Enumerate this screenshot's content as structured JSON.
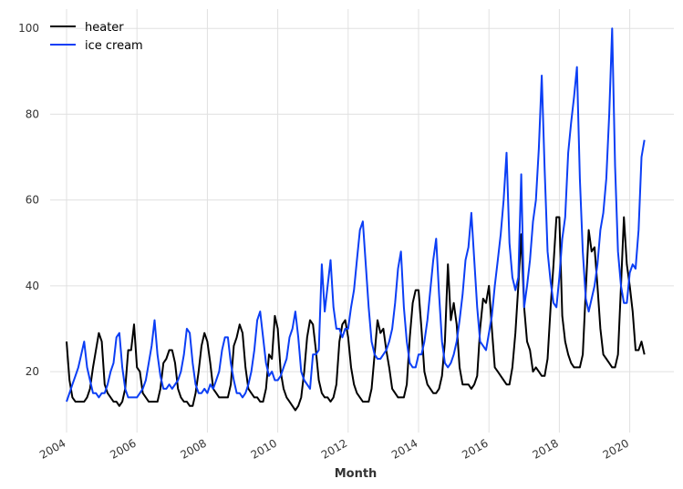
{
  "chart_data": {
    "type": "line",
    "xlabel": "Month",
    "x": [
      "2004-01",
      "2004-02",
      "2004-03",
      "2004-04",
      "2004-05",
      "2004-06",
      "2004-07",
      "2004-08",
      "2004-09",
      "2004-10",
      "2004-11",
      "2004-12",
      "2005-01",
      "2005-02",
      "2005-03",
      "2005-04",
      "2005-05",
      "2005-06",
      "2005-07",
      "2005-08",
      "2005-09",
      "2005-10",
      "2005-11",
      "2005-12",
      "2006-01",
      "2006-02",
      "2006-03",
      "2006-04",
      "2006-05",
      "2006-06",
      "2006-07",
      "2006-08",
      "2006-09",
      "2006-10",
      "2006-11",
      "2006-12",
      "2007-01",
      "2007-02",
      "2007-03",
      "2007-04",
      "2007-05",
      "2007-06",
      "2007-07",
      "2007-08",
      "2007-09",
      "2007-10",
      "2007-11",
      "2007-12",
      "2008-01",
      "2008-02",
      "2008-03",
      "2008-04",
      "2008-05",
      "2008-06",
      "2008-07",
      "2008-08",
      "2008-09",
      "2008-10",
      "2008-11",
      "2008-12",
      "2009-01",
      "2009-02",
      "2009-03",
      "2009-04",
      "2009-05",
      "2009-06",
      "2009-07",
      "2009-08",
      "2009-09",
      "2009-10",
      "2009-11",
      "2009-12",
      "2010-01",
      "2010-02",
      "2010-03",
      "2010-04",
      "2010-05",
      "2010-06",
      "2010-07",
      "2010-08",
      "2010-09",
      "2010-10",
      "2010-11",
      "2010-12",
      "2011-01",
      "2011-02",
      "2011-03",
      "2011-04",
      "2011-05",
      "2011-06",
      "2011-07",
      "2011-08",
      "2011-09",
      "2011-10",
      "2011-11",
      "2011-12",
      "2012-01",
      "2012-02",
      "2012-03",
      "2012-04",
      "2012-05",
      "2012-06",
      "2012-07",
      "2012-08",
      "2012-09",
      "2012-10",
      "2012-11",
      "2012-12",
      "2013-01",
      "2013-02",
      "2013-03",
      "2013-04",
      "2013-05",
      "2013-06",
      "2013-07",
      "2013-08",
      "2013-09",
      "2013-10",
      "2013-11",
      "2013-12",
      "2014-01",
      "2014-02",
      "2014-03",
      "2014-04",
      "2014-05",
      "2014-06",
      "2014-07",
      "2014-08",
      "2014-09",
      "2014-10",
      "2014-11",
      "2014-12",
      "2015-01",
      "2015-02",
      "2015-03",
      "2015-04",
      "2015-05",
      "2015-06",
      "2015-07",
      "2015-08",
      "2015-09",
      "2015-10",
      "2015-11",
      "2015-12",
      "2016-01",
      "2016-02",
      "2016-03",
      "2016-04",
      "2016-05",
      "2016-06",
      "2016-07",
      "2016-08",
      "2016-09",
      "2016-10",
      "2016-11",
      "2016-12",
      "2017-01",
      "2017-02",
      "2017-03",
      "2017-04",
      "2017-05",
      "2017-06",
      "2017-07",
      "2017-08",
      "2017-09",
      "2017-10",
      "2017-11",
      "2017-12",
      "2018-01",
      "2018-02",
      "2018-03",
      "2018-04",
      "2018-05",
      "2018-06",
      "2018-07",
      "2018-08",
      "2018-09",
      "2018-10",
      "2018-11",
      "2018-12",
      "2019-01",
      "2019-02",
      "2019-03",
      "2019-04",
      "2019-05",
      "2019-06",
      "2019-07",
      "2019-08",
      "2019-09",
      "2019-10",
      "2019-11",
      "2019-12",
      "2020-01",
      "2020-02",
      "2020-03",
      "2020-04",
      "2020-05",
      "2020-06"
    ],
    "series": [
      {
        "name": "heater",
        "color": "#000000",
        "values": [
          27,
          18,
          14,
          13,
          13,
          13,
          13,
          14,
          16,
          21,
          25,
          29,
          27,
          17,
          15,
          14,
          13,
          13,
          12,
          13,
          16,
          25,
          25,
          31,
          21,
          20,
          15,
          14,
          13,
          13,
          13,
          13,
          16,
          22,
          23,
          25,
          25,
          22,
          16,
          14,
          13,
          13,
          12,
          12,
          15,
          20,
          26,
          29,
          27,
          22,
          16,
          15,
          14,
          14,
          14,
          14,
          17,
          26,
          28,
          31,
          29,
          21,
          16,
          15,
          14,
          14,
          13,
          13,
          16,
          24,
          23,
          33,
          30,
          20,
          16,
          14,
          13,
          12,
          11,
          12,
          14,
          20,
          28,
          32,
          31,
          25,
          18,
          15,
          14,
          14,
          13,
          14,
          17,
          27,
          31,
          32,
          28,
          21,
          17,
          15,
          14,
          13,
          13,
          13,
          16,
          24,
          32,
          29,
          30,
          25,
          21,
          16,
          15,
          14,
          14,
          14,
          17,
          28,
          36,
          39,
          39,
          30,
          20,
          17,
          16,
          15,
          15,
          16,
          19,
          27,
          45,
          32,
          36,
          31,
          21,
          17,
          17,
          17,
          16,
          17,
          19,
          30,
          37,
          36,
          40,
          30,
          21,
          20,
          19,
          18,
          17,
          17,
          21,
          29,
          40,
          52,
          35,
          27,
          25,
          20,
          21,
          20,
          19,
          19,
          23,
          35,
          45,
          56,
          56,
          33,
          27,
          24,
          22,
          21,
          21,
          21,
          24,
          39,
          53,
          48,
          49,
          40,
          30,
          24,
          23,
          22,
          21,
          21,
          24,
          40,
          56,
          45,
          40,
          34,
          25,
          25,
          27,
          24
        ]
      },
      {
        "name": "ice cream",
        "color": "#0b3ef5",
        "values": [
          13,
          15,
          17,
          19,
          21,
          24,
          27,
          21,
          18,
          15,
          15,
          14,
          15,
          15,
          17,
          20,
          22,
          28,
          29,
          21,
          16,
          14,
          14,
          14,
          14,
          15,
          16,
          18,
          22,
          26,
          32,
          24,
          19,
          16,
          16,
          17,
          16,
          17,
          18,
          20,
          24,
          30,
          29,
          22,
          17,
          15,
          15,
          16,
          15,
          17,
          16,
          18,
          20,
          25,
          28,
          28,
          22,
          18,
          15,
          15,
          14,
          15,
          17,
          20,
          25,
          32,
          34,
          28,
          22,
          19,
          20,
          18,
          18,
          19,
          21,
          23,
          28,
          30,
          34,
          28,
          20,
          18,
          17,
          16,
          24,
          24,
          25,
          45,
          34,
          40,
          46,
          35,
          30,
          30,
          28,
          30,
          30,
          35,
          39,
          46,
          53,
          55,
          45,
          35,
          27,
          24,
          23,
          23,
          24,
          25,
          27,
          30,
          36,
          44,
          48,
          35,
          27,
          22,
          21,
          21,
          24,
          24,
          27,
          32,
          39,
          46,
          51,
          38,
          27,
          22,
          21,
          22,
          24,
          27,
          32,
          38,
          46,
          49,
          57,
          46,
          35,
          27,
          26,
          25,
          29,
          33,
          40,
          46,
          52,
          60,
          71,
          50,
          42,
          39,
          42,
          66,
          35,
          40,
          46,
          55,
          60,
          72,
          89,
          67,
          48,
          41,
          36,
          35,
          42,
          51,
          56,
          71,
          78,
          84,
          91,
          65,
          48,
          37,
          34,
          37,
          40,
          45,
          53,
          57,
          65,
          80,
          100,
          68,
          48,
          40,
          36,
          36,
          43,
          45,
          44,
          53,
          70,
          74
        ]
      }
    ],
    "xticks": [
      2004,
      2006,
      2008,
      2010,
      2012,
      2014,
      2016,
      2018,
      2020
    ],
    "ylim": [
      5.8,
      104.5
    ],
    "yticks": [
      20,
      40,
      60,
      80,
      100
    ],
    "grid": true,
    "legend": "upper left"
  }
}
